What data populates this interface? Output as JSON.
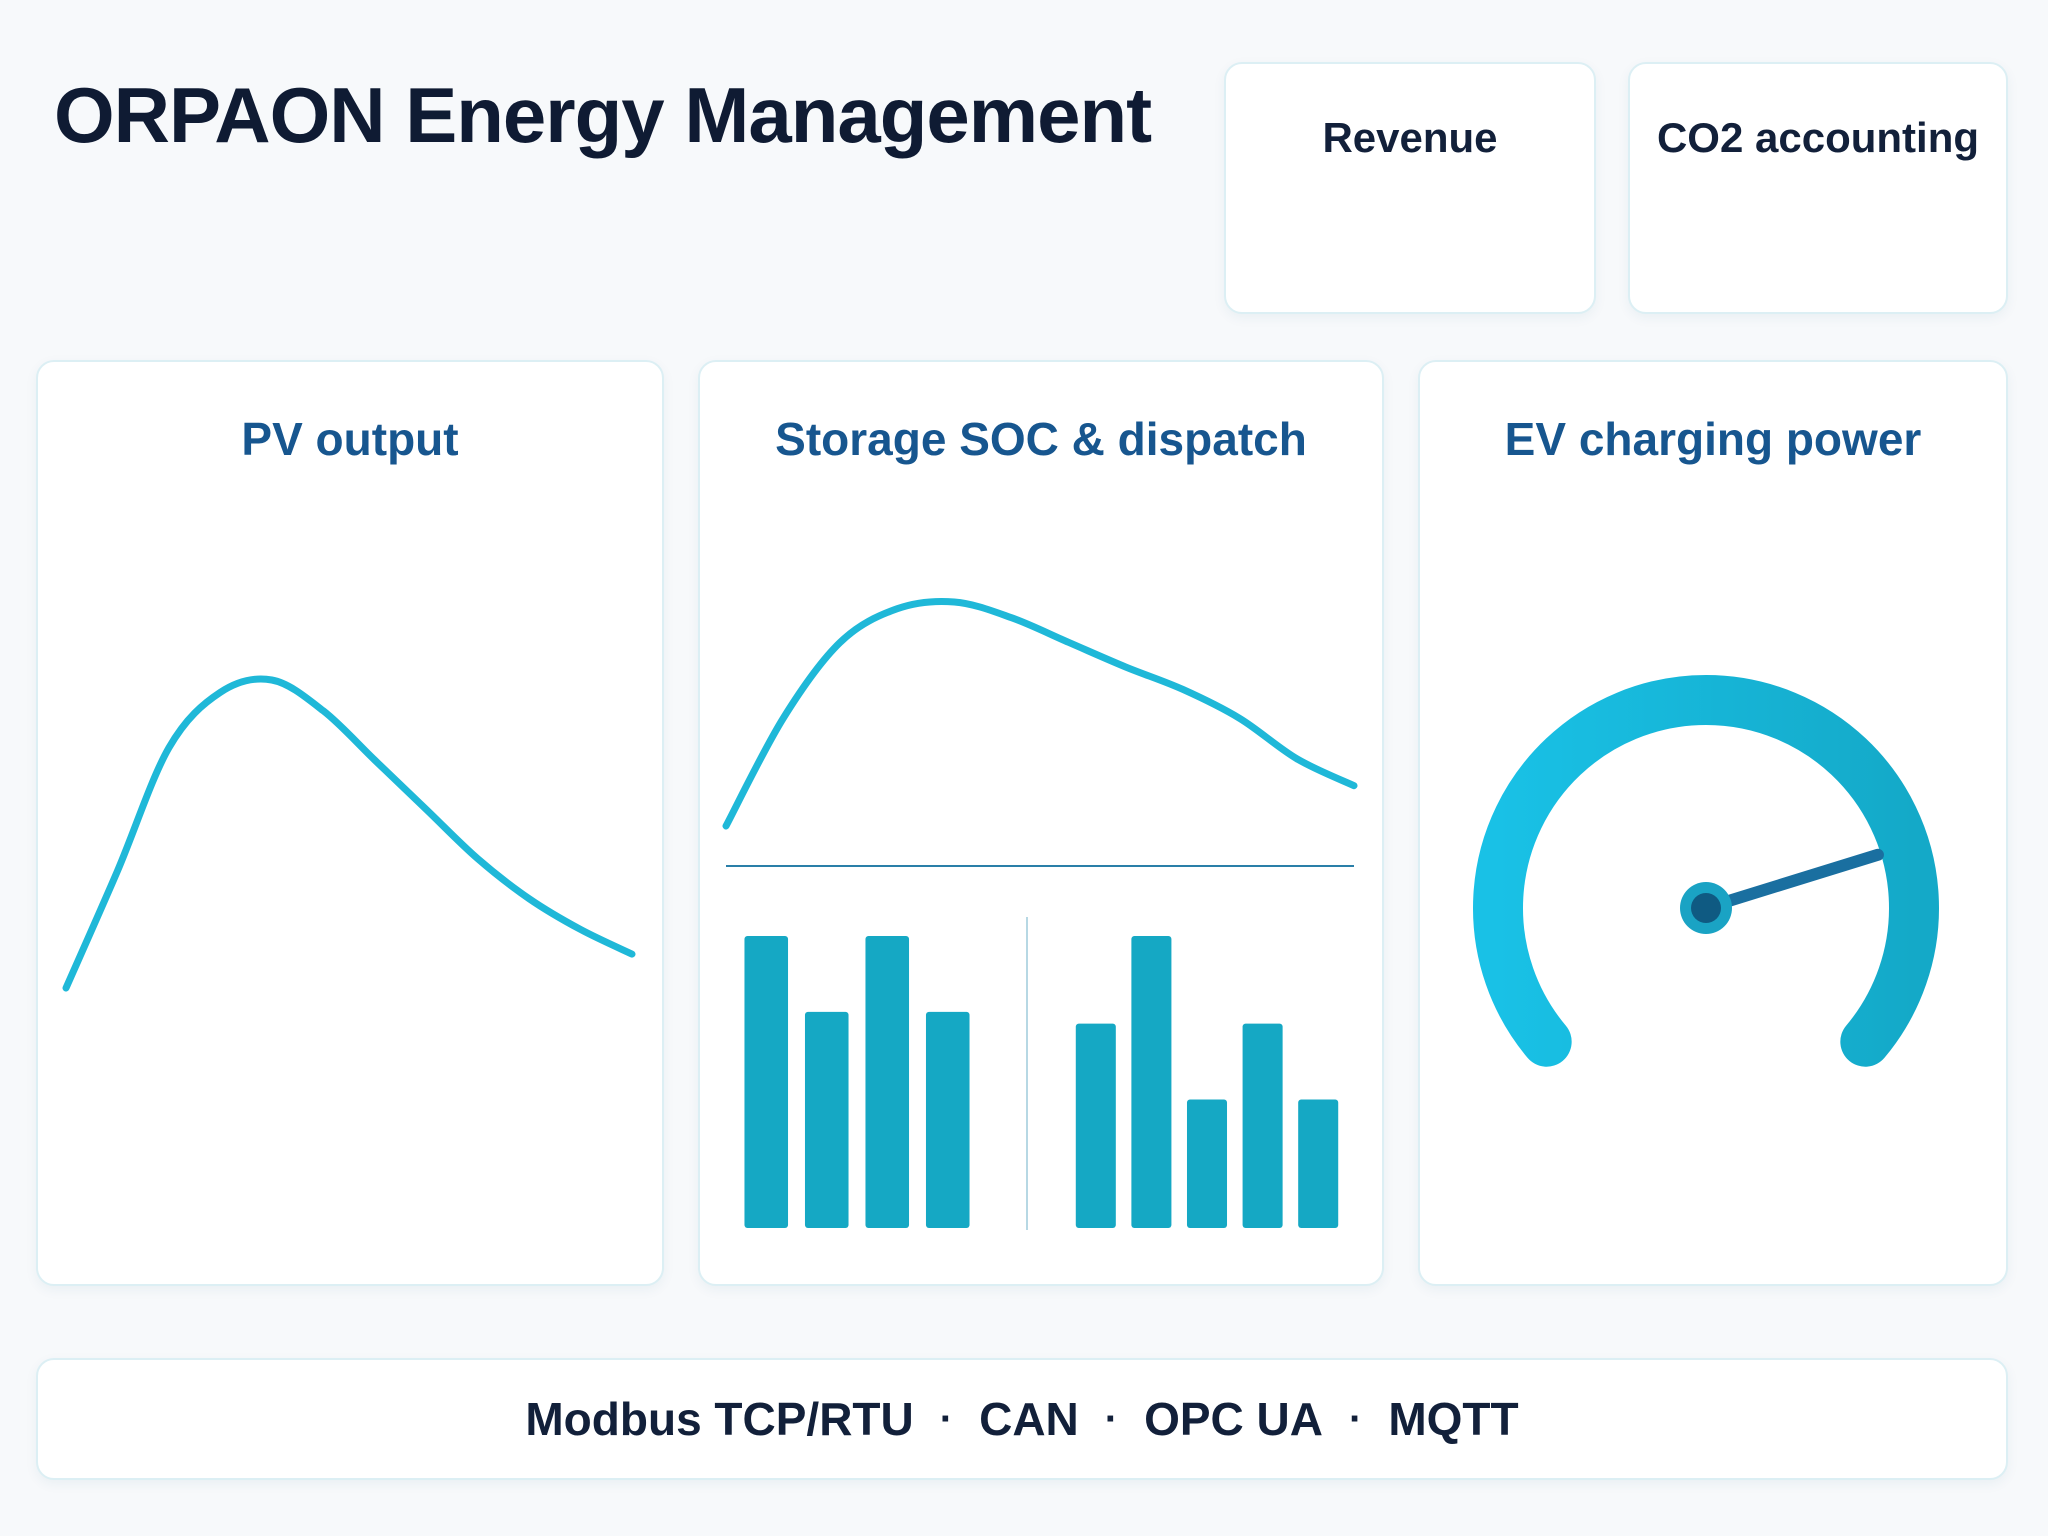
{
  "app": {
    "title": "ORPAON Energy Management"
  },
  "kpi_cards": [
    {
      "title": "Revenue"
    },
    {
      "title": "CO2 accounting"
    }
  ],
  "panels": {
    "pv": {
      "title": "PV output",
      "series": [
        0.0,
        0.38,
        0.78,
        0.96,
        1.0,
        0.9,
        0.74,
        0.58,
        0.42,
        0.29,
        0.19,
        0.11
      ]
    },
    "storage": {
      "title": "Storage SOC & dispatch",
      "soc_series": [
        0.0,
        0.48,
        0.82,
        0.97,
        1.0,
        0.93,
        0.82,
        0.71,
        0.61,
        0.48,
        0.3,
        0.18
      ],
      "dispatch_groups": [
        [
          1.0,
          0.74,
          1.0,
          0.74
        ],
        [
          0.7,
          1.0,
          0.44,
          0.7,
          0.44
        ]
      ]
    },
    "ev": {
      "title": "EV charging power",
      "gauge_level": 0.78
    }
  },
  "protocols": {
    "items": [
      "Modbus TCP/RTU",
      "CAN",
      "OPC UA",
      "MQTT"
    ],
    "separator": "·"
  },
  "colors": {
    "accent": "#1fb8d8",
    "bar": "#15a8c4",
    "gauge_needle": "#1a6fa0",
    "panel_title": "#17568f",
    "text_dark": "#12203a"
  }
}
